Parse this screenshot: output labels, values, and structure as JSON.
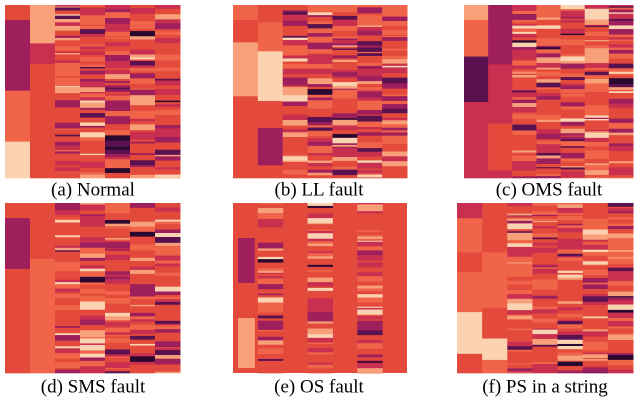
{
  "panels": [
    {
      "caption": "(a) Normal"
    },
    {
      "caption": "(b) LL fault"
    },
    {
      "caption": "(c) OMS fault"
    },
    {
      "caption": "(d) SMS fault"
    },
    {
      "caption": "(e) OS fault"
    },
    {
      "caption": "(f) PS in a string"
    }
  ]
}
